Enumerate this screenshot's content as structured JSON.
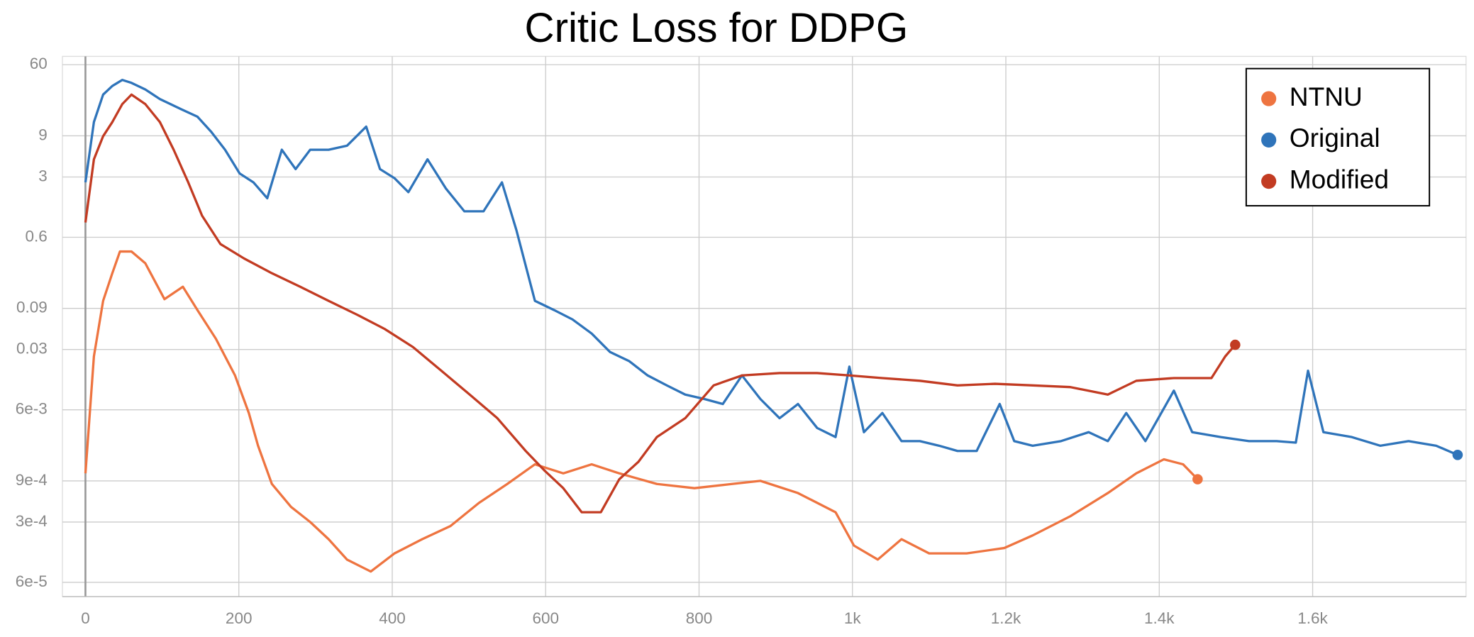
{
  "chart_data": {
    "type": "line",
    "title": "Critic Loss for DDPG",
    "yscale": "log",
    "grid": true,
    "legend": "upper right",
    "xlim": [
      -30,
      1800
    ],
    "xticks": [
      0,
      200,
      400,
      600,
      800,
      {
        "value": 1000,
        "label": "1k"
      },
      {
        "value": 1200,
        "label": "1.2k"
      },
      {
        "value": 1400,
        "label": "1.4k"
      },
      {
        "value": 1600,
        "label": "1.6k"
      }
    ],
    "ylim": [
      4.1e-05,
      75
    ],
    "yticks": [
      60,
      9,
      3,
      0.6,
      0.09,
      0.03,
      {
        "value": 0.006,
        "label": "6e-3"
      },
      {
        "value": 0.0009,
        "label": "9e-4"
      },
      {
        "value": 0.0003,
        "label": "3e-4"
      },
      {
        "value": 6e-05,
        "label": "6e-5"
      }
    ],
    "series": [
      {
        "name": "NTNU",
        "color": "#ee7440",
        "x": [
          0,
          11,
          23,
          35,
          45,
          60,
          78,
          103,
          127,
          146,
          170,
          195,
          213,
          225,
          243,
          268,
          293,
          317,
          341,
          372,
          403,
          439,
          476,
          513,
          550,
          586,
          623,
          660,
          696,
          745,
          794,
          843,
          880,
          929,
          978,
          1002,
          1033,
          1064,
          1100,
          1149,
          1198,
          1235,
          1284,
          1333,
          1370,
          1406,
          1431,
          1450
        ],
        "values": [
          0.0011,
          0.025,
          0.11,
          0.23,
          0.41,
          0.41,
          0.3,
          0.115,
          0.16,
          0.086,
          0.04,
          0.015,
          0.0055,
          0.0023,
          0.00083,
          0.00045,
          0.0003,
          0.00019,
          0.00011,
          8e-05,
          0.00013,
          0.00019,
          0.00027,
          0.0005,
          0.00083,
          0.0014,
          0.0011,
          0.0014,
          0.0011,
          0.00083,
          0.00074,
          0.00083,
          0.0009,
          0.00065,
          0.00039,
          0.00016,
          0.00011,
          0.00019,
          0.00013,
          0.00013,
          0.00015,
          0.00021,
          0.00035,
          0.00065,
          0.0011,
          0.0016,
          0.0014,
          0.00094
        ]
      },
      {
        "name": "Original",
        "color": "#2f74ba",
        "x": [
          0,
          11,
          23,
          35,
          48,
          60,
          78,
          97,
          121,
          146,
          164,
          182,
          201,
          219,
          237,
          256,
          274,
          293,
          317,
          341,
          366,
          384,
          403,
          421,
          446,
          470,
          494,
          519,
          543,
          562,
          586,
          611,
          635,
          660,
          684,
          709,
          733,
          758,
          782,
          807,
          831,
          856,
          880,
          905,
          929,
          954,
          978,
          996,
          1015,
          1039,
          1064,
          1088,
          1113,
          1137,
          1162,
          1192,
          1211,
          1235,
          1272,
          1308,
          1333,
          1357,
          1382,
          1419,
          1443,
          1480,
          1517,
          1553,
          1578,
          1594,
          1614,
          1651,
          1688,
          1725,
          1761,
          1789
        ],
        "values": [
          2.6,
          13,
          27,
          34,
          40,
          37,
          31,
          24,
          19,
          15,
          10,
          6.2,
          3.3,
          2.6,
          1.7,
          6.2,
          3.7,
          6.2,
          6.2,
          6.9,
          11.5,
          3.7,
          2.9,
          2.0,
          4.8,
          2.2,
          1.2,
          1.2,
          2.6,
          0.72,
          0.11,
          0.086,
          0.067,
          0.046,
          0.028,
          0.022,
          0.015,
          0.0115,
          0.009,
          0.008,
          0.007,
          0.015,
          0.008,
          0.0048,
          0.007,
          0.0037,
          0.0029,
          0.019,
          0.0033,
          0.0055,
          0.0026,
          0.0026,
          0.0023,
          0.002,
          0.002,
          0.007,
          0.0026,
          0.0023,
          0.0026,
          0.0033,
          0.0026,
          0.0055,
          0.0026,
          0.01,
          0.0033,
          0.0029,
          0.0026,
          0.0026,
          0.0025,
          0.017,
          0.0033,
          0.0029,
          0.0023,
          0.0026,
          0.0023,
          0.0018
        ]
      },
      {
        "name": "Modified",
        "color": "#c23b22",
        "x": [
          0,
          11,
          23,
          35,
          48,
          60,
          78,
          97,
          115,
          134,
          152,
          176,
          207,
          243,
          280,
          317,
          354,
          390,
          427,
          464,
          501,
          537,
          574,
          598,
          623,
          647,
          672,
          696,
          721,
          745,
          782,
          819,
          856,
          905,
          954,
          996,
          1039,
          1088,
          1137,
          1186,
          1235,
          1284,
          1333,
          1370,
          1419,
          1468,
          1486,
          1499
        ],
        "values": [
          0.89,
          4.8,
          8.9,
          13,
          21,
          27,
          21,
          13,
          6.2,
          2.6,
          1.07,
          0.5,
          0.34,
          0.23,
          0.16,
          0.11,
          0.076,
          0.052,
          0.032,
          0.017,
          0.009,
          0.0048,
          0.002,
          0.0012,
          0.00074,
          0.00039,
          0.00039,
          0.00094,
          0.0015,
          0.0029,
          0.0048,
          0.0115,
          0.015,
          0.016,
          0.016,
          0.015,
          0.014,
          0.013,
          0.0115,
          0.012,
          0.0115,
          0.011,
          0.009,
          0.013,
          0.014,
          0.014,
          0.025,
          0.034
        ]
      }
    ]
  }
}
